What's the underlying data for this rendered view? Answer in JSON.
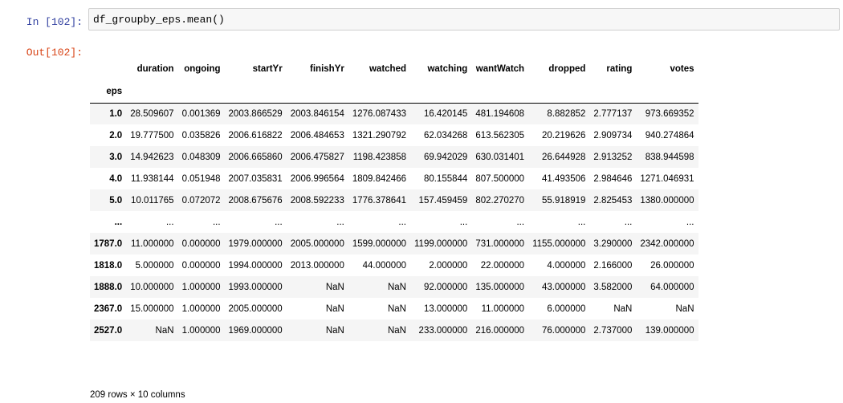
{
  "cell": {
    "in_prompt": "In [102]:",
    "code": "df_groupby_eps.mean()",
    "out_prompt": "Out[102]:"
  },
  "table": {
    "columns": [
      "duration",
      "ongoing",
      "startYr",
      "finishYr",
      "watched",
      "watching",
      "wantWatch",
      "dropped",
      "rating",
      "votes"
    ],
    "index_name": "eps",
    "rows": [
      {
        "index": "1.0",
        "values": [
          "28.509607",
          "0.001369",
          "2003.866529",
          "2003.846154",
          "1276.087433",
          "16.420145",
          "481.194608",
          "8.882852",
          "2.777137",
          "973.669352"
        ]
      },
      {
        "index": "2.0",
        "values": [
          "19.777500",
          "0.035826",
          "2006.616822",
          "2006.484653",
          "1321.290792",
          "62.034268",
          "613.562305",
          "20.219626",
          "2.909734",
          "940.274864"
        ]
      },
      {
        "index": "3.0",
        "values": [
          "14.942623",
          "0.048309",
          "2006.665860",
          "2006.475827",
          "1198.423858",
          "69.942029",
          "630.031401",
          "26.644928",
          "2.913252",
          "838.944598"
        ]
      },
      {
        "index": "4.0",
        "values": [
          "11.938144",
          "0.051948",
          "2007.035831",
          "2006.996564",
          "1809.842466",
          "80.155844",
          "807.500000",
          "41.493506",
          "2.984646",
          "1271.046931"
        ]
      },
      {
        "index": "5.0",
        "values": [
          "10.011765",
          "0.072072",
          "2008.675676",
          "2008.592233",
          "1776.378641",
          "157.459459",
          "802.270270",
          "55.918919",
          "2.825453",
          "1380.000000"
        ]
      },
      {
        "index": "...",
        "values": [
          "...",
          "...",
          "...",
          "...",
          "...",
          "...",
          "...",
          "...",
          "...",
          "..."
        ]
      },
      {
        "index": "1787.0",
        "values": [
          "11.000000",
          "0.000000",
          "1979.000000",
          "2005.000000",
          "1599.000000",
          "1199.000000",
          "731.000000",
          "1155.000000",
          "3.290000",
          "2342.000000"
        ]
      },
      {
        "index": "1818.0",
        "values": [
          "5.000000",
          "0.000000",
          "1994.000000",
          "2013.000000",
          "44.000000",
          "2.000000",
          "22.000000",
          "4.000000",
          "2.166000",
          "26.000000"
        ]
      },
      {
        "index": "1888.0",
        "values": [
          "10.000000",
          "1.000000",
          "1993.000000",
          "NaN",
          "NaN",
          "92.000000",
          "135.000000",
          "43.000000",
          "3.582000",
          "64.000000"
        ]
      },
      {
        "index": "2367.0",
        "values": [
          "15.000000",
          "1.000000",
          "2005.000000",
          "NaN",
          "NaN",
          "13.000000",
          "11.000000",
          "6.000000",
          "NaN",
          "NaN"
        ]
      },
      {
        "index": "2527.0",
        "values": [
          "NaN",
          "1.000000",
          "1969.000000",
          "NaN",
          "NaN",
          "233.000000",
          "216.000000",
          "76.000000",
          "2.737000",
          "139.000000"
        ]
      }
    ],
    "footer": "209 rows × 10 columns"
  }
}
